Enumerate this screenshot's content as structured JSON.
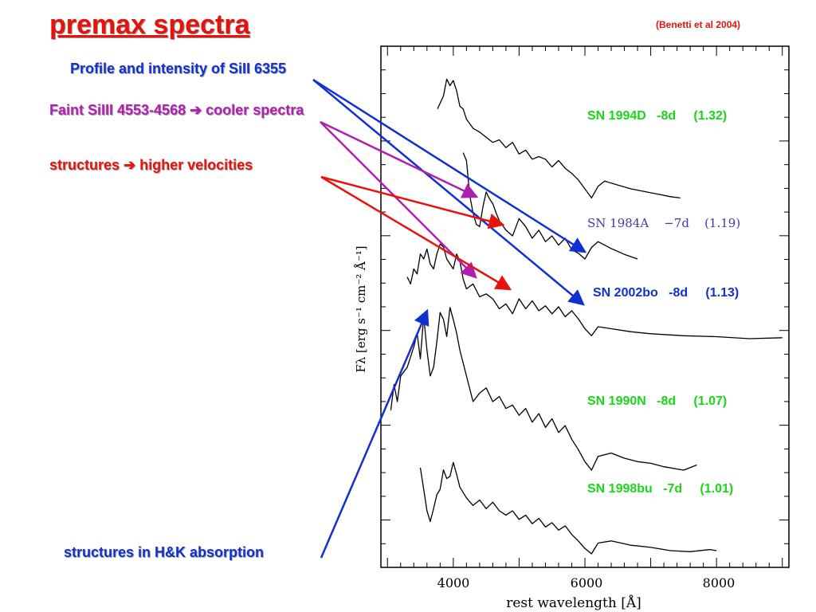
{
  "title": "premax spectra",
  "citation": "(Benetti et al  2004)",
  "notes": {
    "sill_profile": "Profile and intensity of SiII 6355",
    "silll_faint": "Faint SiIII 4553-4568 ➔ cooler spectra",
    "structures": "structures ➔ higher velocities",
    "hk": "structures in H&K absorption"
  },
  "colors": {
    "red": "#e8120c",
    "blue": "#1030d0",
    "magenta": "#b020b0",
    "green": "#19d619"
  },
  "chart_data": {
    "type": "line",
    "xlabel": "rest wavelength [Å]",
    "ylabel": "Fλ [erg s⁻¹ cm⁻² Å⁻¹]",
    "xlim": [
      2900,
      9100
    ],
    "xticks": [
      "4000",
      "6000",
      "8000"
    ],
    "series": [
      {
        "name": "SN 1994D",
        "label": {
          "name": "SN 1994D",
          "phase": "-8d",
          "ratio": "(1.32)"
        },
        "x": [
          3760,
          3850,
          3900,
          3950,
          4000,
          4050,
          4100,
          4150,
          4200,
          4300,
          4400,
          4500,
          4600,
          4700,
          4800,
          4900,
          5000,
          5100,
          5200,
          5300,
          5400,
          5500,
          5600,
          5700,
          5800,
          5900,
          6000,
          6100,
          6200,
          6300,
          6500,
          6700,
          6900,
          7100,
          7300,
          7450
        ],
        "y": [
          0.7,
          0.8,
          0.93,
          0.88,
          0.92,
          0.84,
          0.72,
          0.7,
          0.62,
          0.55,
          0.52,
          0.48,
          0.44,
          0.46,
          0.4,
          0.44,
          0.35,
          0.38,
          0.31,
          0.33,
          0.31,
          0.25,
          0.3,
          0.24,
          0.2,
          0.15,
          0.08,
          0.01,
          0.1,
          0.14,
          0.11,
          0.08,
          0.06,
          0.04,
          0.02,
          0.01
        ]
      },
      {
        "name": "SN 1984A",
        "label": {
          "name": "SN 1984A",
          "phase": "−7d",
          "ratio": "(1.19)"
        },
        "x": [
          4150,
          4200,
          4250,
          4300,
          4350,
          4400,
          4450,
          4500,
          4550,
          4600,
          4650,
          4700,
          4800,
          4900,
          5000,
          5100,
          5200,
          5300,
          5400,
          5500,
          5600,
          5700,
          5800,
          5900,
          6000,
          6100,
          6200,
          6300,
          6400,
          6600,
          6800
        ],
        "y": [
          0.92,
          0.85,
          0.55,
          0.4,
          0.3,
          0.28,
          0.45,
          0.58,
          0.52,
          0.48,
          0.4,
          0.33,
          0.25,
          0.2,
          0.35,
          0.28,
          0.18,
          0.25,
          0.15,
          0.2,
          0.12,
          0.18,
          0.08,
          0.05,
          0.0,
          0.1,
          0.15,
          0.12,
          0.09,
          0.04,
          0.0
        ]
      },
      {
        "name": "SN 2002bo",
        "label": {
          "name": "SN 2002bo",
          "phase": "-8d",
          "ratio": "(1.13)"
        },
        "x": [
          3300,
          3350,
          3400,
          3450,
          3500,
          3550,
          3600,
          3650,
          3700,
          3750,
          3800,
          3850,
          3900,
          4000,
          4050,
          4100,
          4150,
          4200,
          4300,
          4400,
          4500,
          4600,
          4700,
          4800,
          4900,
          5000,
          5100,
          5200,
          5300,
          5400,
          5500,
          5600,
          5700,
          5800,
          5900,
          6000,
          6100,
          6200,
          6400,
          6700,
          7000,
          7500,
          8000,
          8500,
          9000
        ],
        "y": [
          0.62,
          0.55,
          0.7,
          0.65,
          0.85,
          0.8,
          0.9,
          0.75,
          0.7,
          0.85,
          0.95,
          0.92,
          0.8,
          0.7,
          0.85,
          0.78,
          0.6,
          0.5,
          0.55,
          0.42,
          0.45,
          0.4,
          0.3,
          0.35,
          0.25,
          0.4,
          0.3,
          0.38,
          0.28,
          0.33,
          0.25,
          0.32,
          0.22,
          0.28,
          0.2,
          0.1,
          0.03,
          0.12,
          0.1,
          0.07,
          0.05,
          0.03,
          0.02,
          0.0,
          0.01
        ]
      },
      {
        "name": "SN 1990N",
        "label": {
          "name": "SN 1990N",
          "phase": "-8d",
          "ratio": "(1.07)"
        },
        "x": [
          3050,
          3100,
          3150,
          3200,
          3300,
          3400,
          3450,
          3500,
          3550,
          3600,
          3650,
          3700,
          3750,
          3800,
          3850,
          3900,
          3950,
          4000,
          4050,
          4100,
          4200,
          4300,
          4400,
          4500,
          4600,
          4700,
          4800,
          4900,
          5000,
          5100,
          5200,
          5300,
          5400,
          5500,
          5600,
          5700,
          5800,
          5900,
          6000,
          6100,
          6200,
          6400,
          6600,
          6800,
          7000,
          7200,
          7500,
          7700
        ],
        "y": [
          0.35,
          0.5,
          0.4,
          0.55,
          0.6,
          0.72,
          0.8,
          0.65,
          0.9,
          0.7,
          0.55,
          0.6,
          0.75,
          0.92,
          0.88,
          0.78,
          0.95,
          0.88,
          0.8,
          0.7,
          0.55,
          0.4,
          0.45,
          0.48,
          0.4,
          0.43,
          0.36,
          0.38,
          0.32,
          0.36,
          0.28,
          0.33,
          0.25,
          0.3,
          0.22,
          0.26,
          0.18,
          0.12,
          0.05,
          0.0,
          0.08,
          0.1,
          0.07,
          0.05,
          0.04,
          0.02,
          0.0,
          0.03
        ]
      },
      {
        "name": "SN 1998bu",
        "label": {
          "name": "SN 1998bu",
          "phase": "-7d",
          "ratio": "(1.01)"
        },
        "x": [
          3500,
          3550,
          3600,
          3650,
          3700,
          3750,
          3800,
          3850,
          3900,
          3950,
          4000,
          4050,
          4100,
          4200,
          4300,
          4400,
          4500,
          4600,
          4700,
          4800,
          4900,
          5000,
          5100,
          5200,
          5300,
          5400,
          5500,
          5600,
          5700,
          5800,
          5900,
          6000,
          6100,
          6200,
          6400,
          6700,
          7000,
          7300,
          7600,
          7900,
          8000
        ],
        "y": [
          0.8,
          0.6,
          0.4,
          0.3,
          0.42,
          0.55,
          0.6,
          0.78,
          0.7,
          0.72,
          0.85,
          0.74,
          0.62,
          0.52,
          0.45,
          0.5,
          0.42,
          0.48,
          0.4,
          0.36,
          0.4,
          0.32,
          0.36,
          0.28,
          0.33,
          0.25,
          0.29,
          0.22,
          0.26,
          0.18,
          0.12,
          0.05,
          0.0,
          0.1,
          0.12,
          0.08,
          0.06,
          0.03,
          0.02,
          0.04,
          0.03
        ]
      }
    ]
  }
}
